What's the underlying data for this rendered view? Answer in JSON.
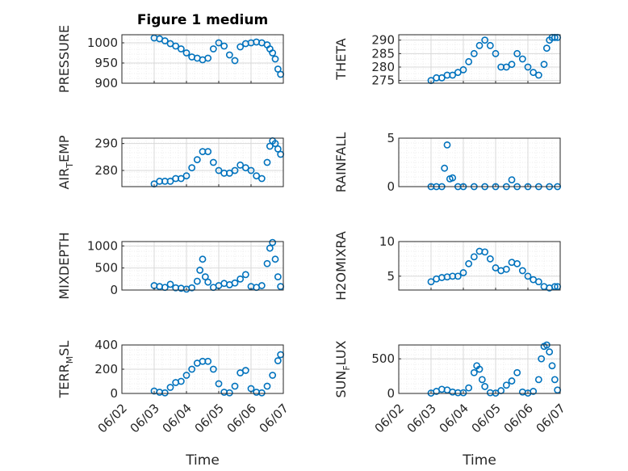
{
  "figure": {
    "title": "Figure 1 medium",
    "x_axis_label": "Time"
  },
  "colors": {
    "marker": "#0072BD",
    "axis": "#262626",
    "grid": "#d9d9d9",
    "minor_grid": "#ececec"
  },
  "chart_data": [
    {
      "type": "scatter",
      "position": "row1-left",
      "ylabel": "PRESSURE",
      "ylim": [
        900,
        1020
      ],
      "yticks": [
        900,
        950,
        1000
      ],
      "xlim": [
        "06/02",
        "06/07"
      ],
      "xticks": [],
      "grid": true,
      "x": [
        "06/03 00:00",
        "06/03 04:00",
        "06/03 08:00",
        "06/03 12:00",
        "06/03 16:00",
        "06/03 20:00",
        "06/04 00:00",
        "06/04 04:00",
        "06/04 08:00",
        "06/04 12:00",
        "06/04 16:00",
        "06/04 20:00",
        "06/05 00:00",
        "06/05 04:00",
        "06/05 08:00",
        "06/05 12:00",
        "06/05 16:00",
        "06/05 20:00",
        "06/06 00:00",
        "06/06 04:00",
        "06/06 08:00",
        "06/06 12:00",
        "06/06 14:00",
        "06/06 16:00",
        "06/06 18:00",
        "06/06 20:00",
        "06/06 22:00"
      ],
      "y": [
        1012,
        1010,
        1005,
        998,
        992,
        985,
        975,
        965,
        962,
        958,
        962,
        985,
        1000,
        992,
        970,
        956,
        990,
        998,
        1000,
        1002,
        1000,
        995,
        985,
        975,
        960,
        935,
        922
      ]
    },
    {
      "type": "scatter",
      "position": "row1-right",
      "ylabel": "THETA",
      "ylim": [
        274,
        292
      ],
      "yticks": [
        275,
        280,
        285,
        290
      ],
      "xlim": [
        "06/02",
        "06/07"
      ],
      "xticks": [],
      "grid": true,
      "x": [
        "06/03 00:00",
        "06/03 04:00",
        "06/03 08:00",
        "06/03 12:00",
        "06/03 16:00",
        "06/03 20:00",
        "06/04 00:00",
        "06/04 04:00",
        "06/04 08:00",
        "06/04 12:00",
        "06/04 16:00",
        "06/04 20:00",
        "06/05 00:00",
        "06/05 04:00",
        "06/05 08:00",
        "06/05 12:00",
        "06/05 16:00",
        "06/05 20:00",
        "06/06 00:00",
        "06/06 04:00",
        "06/06 08:00",
        "06/06 12:00",
        "06/06 14:00",
        "06/06 16:00",
        "06/06 18:00",
        "06/06 20:00",
        "06/06 22:00"
      ],
      "y": [
        275,
        276,
        276,
        277,
        277,
        278,
        279,
        282,
        285,
        288,
        290,
        288,
        285,
        280,
        280,
        281,
        285,
        283,
        280,
        278,
        277,
        281,
        287,
        290,
        291,
        291,
        291
      ]
    },
    {
      "type": "scatter",
      "position": "row2-left",
      "ylabel": "AIR_TEMP",
      "ylabel_main": "AIR",
      "ylabel_sub": "T",
      "ylabel_rest": "EMP",
      "ylim": [
        274,
        292
      ],
      "yticks": [
        280,
        290
      ],
      "xlim": [
        "06/02",
        "06/07"
      ],
      "xticks": [],
      "grid": true,
      "x": [
        "06/03 00:00",
        "06/03 04:00",
        "06/03 08:00",
        "06/03 12:00",
        "06/03 16:00",
        "06/03 20:00",
        "06/04 00:00",
        "06/04 04:00",
        "06/04 08:00",
        "06/04 12:00",
        "06/04 16:00",
        "06/04 20:00",
        "06/05 00:00",
        "06/05 04:00",
        "06/05 08:00",
        "06/05 12:00",
        "06/05 16:00",
        "06/05 20:00",
        "06/06 00:00",
        "06/06 04:00",
        "06/06 08:00",
        "06/06 12:00",
        "06/06 14:00",
        "06/06 16:00",
        "06/06 18:00",
        "06/06 20:00",
        "06/06 22:00"
      ],
      "y": [
        275,
        276,
        276,
        276,
        277,
        277,
        278,
        281,
        284,
        287,
        287,
        283,
        280,
        279,
        279,
        280,
        282,
        281,
        280,
        278,
        277,
        283,
        289,
        291,
        290,
        288,
        286
      ]
    },
    {
      "type": "scatter",
      "position": "row2-right",
      "ylabel": "RAINFALL",
      "ylim": [
        0,
        5
      ],
      "yticks": [
        0,
        5
      ],
      "xlim": [
        "06/02",
        "06/07"
      ],
      "xticks": [],
      "grid": true,
      "x": [
        "06/03 00:00",
        "06/03 04:00",
        "06/03 08:00",
        "06/03 10:00",
        "06/03 12:00",
        "06/03 14:00",
        "06/03 16:00",
        "06/03 20:00",
        "06/04 00:00",
        "06/04 08:00",
        "06/04 16:00",
        "06/05 00:00",
        "06/05 08:00",
        "06/05 12:00",
        "06/05 16:00",
        "06/06 00:00",
        "06/06 08:00",
        "06/06 16:00",
        "06/06 22:00"
      ],
      "y": [
        0,
        0,
        0,
        1.9,
        4.3,
        0.8,
        0.9,
        0,
        0,
        0,
        0,
        0,
        0,
        0.7,
        0,
        0,
        0,
        0,
        0
      ]
    },
    {
      "type": "scatter",
      "position": "row3-left",
      "ylabel": "MIXDEPTH",
      "ylim": [
        0,
        1100
      ],
      "yticks": [
        0,
        500,
        1000
      ],
      "xlim": [
        "06/02",
        "06/07"
      ],
      "xticks": [],
      "grid": true,
      "x": [
        "06/03 00:00",
        "06/03 04:00",
        "06/03 08:00",
        "06/03 12:00",
        "06/03 16:00",
        "06/03 20:00",
        "06/04 00:00",
        "06/04 04:00",
        "06/04 08:00",
        "06/04 10:00",
        "06/04 12:00",
        "06/04 14:00",
        "06/04 16:00",
        "06/04 20:00",
        "06/05 00:00",
        "06/05 04:00",
        "06/05 08:00",
        "06/05 12:00",
        "06/05 16:00",
        "06/05 20:00",
        "06/06 00:00",
        "06/06 04:00",
        "06/06 08:00",
        "06/06 12:00",
        "06/06 14:00",
        "06/06 16:00",
        "06/06 18:00",
        "06/06 20:00",
        "06/06 22:00"
      ],
      "y": [
        100,
        80,
        60,
        130,
        50,
        40,
        20,
        50,
        200,
        450,
        700,
        300,
        180,
        60,
        100,
        150,
        120,
        160,
        250,
        350,
        80,
        60,
        100,
        600,
        950,
        1080,
        700,
        300,
        80
      ]
    },
    {
      "type": "scatter",
      "position": "row3-right",
      "ylabel": "H2OMIXRA",
      "ylim": [
        3,
        10
      ],
      "yticks": [
        5,
        10
      ],
      "xlim": [
        "06/02",
        "06/07"
      ],
      "xticks": [],
      "grid": true,
      "x": [
        "06/03 00:00",
        "06/03 04:00",
        "06/03 08:00",
        "06/03 12:00",
        "06/03 16:00",
        "06/03 20:00",
        "06/04 00:00",
        "06/04 04:00",
        "06/04 08:00",
        "06/04 12:00",
        "06/04 16:00",
        "06/04 20:00",
        "06/05 00:00",
        "06/05 04:00",
        "06/05 08:00",
        "06/05 12:00",
        "06/05 16:00",
        "06/05 20:00",
        "06/06 00:00",
        "06/06 04:00",
        "06/06 08:00",
        "06/06 12:00",
        "06/06 16:00",
        "06/06 20:00",
        "06/06 22:00"
      ],
      "y": [
        4.2,
        4.6,
        4.8,
        4.9,
        5.0,
        5.0,
        5.5,
        6.8,
        7.8,
        8.6,
        8.5,
        7.5,
        6.2,
        5.8,
        6.0,
        7.0,
        6.8,
        5.8,
        5.0,
        4.5,
        4.2,
        3.5,
        3.3,
        3.5,
        3.5
      ]
    },
    {
      "type": "scatter",
      "position": "row4-left",
      "ylabel": "TERR_MSL",
      "ylabel_main": "TERR",
      "ylabel_sub": "M",
      "ylabel_rest": "SL",
      "ylim": [
        0,
        400
      ],
      "yticks": [
        0,
        200,
        400
      ],
      "xlim": [
        "06/02",
        "06/07"
      ],
      "xticks": [
        "06/02",
        "06/03",
        "06/04",
        "06/05",
        "06/06",
        "06/07"
      ],
      "grid": true,
      "x": [
        "06/03 00:00",
        "06/03 04:00",
        "06/03 08:00",
        "06/03 12:00",
        "06/03 16:00",
        "06/03 20:00",
        "06/04 00:00",
        "06/04 04:00",
        "06/04 08:00",
        "06/04 12:00",
        "06/04 16:00",
        "06/04 20:00",
        "06/05 00:00",
        "06/05 04:00",
        "06/05 08:00",
        "06/05 12:00",
        "06/05 16:00",
        "06/05 20:00",
        "06/06 00:00",
        "06/06 04:00",
        "06/06 08:00",
        "06/06 12:00",
        "06/06 16:00",
        "06/06 20:00",
        "06/06 22:00"
      ],
      "y": [
        20,
        10,
        5,
        50,
        90,
        100,
        150,
        200,
        250,
        265,
        265,
        200,
        80,
        10,
        5,
        60,
        170,
        190,
        40,
        10,
        5,
        60,
        150,
        270,
        320
      ]
    },
    {
      "type": "scatter",
      "position": "row4-right",
      "ylabel": "SUN_FLUX",
      "ylabel_main": "SUN",
      "ylabel_sub": "F",
      "ylabel_rest": "LUX",
      "ylim": [
        0,
        700
      ],
      "yticks": [
        0,
        500
      ],
      "xlim": [
        "06/02",
        "06/07"
      ],
      "xticks": [
        "06/02",
        "06/03",
        "06/04",
        "06/05",
        "06/06",
        "06/07"
      ],
      "grid": true,
      "x": [
        "06/03 00:00",
        "06/03 04:00",
        "06/03 08:00",
        "06/03 12:00",
        "06/03 16:00",
        "06/03 20:00",
        "06/04 00:00",
        "06/04 04:00",
        "06/04 08:00",
        "06/04 10:00",
        "06/04 12:00",
        "06/04 14:00",
        "06/04 16:00",
        "06/04 20:00",
        "06/05 00:00",
        "06/05 04:00",
        "06/05 08:00",
        "06/05 12:00",
        "06/05 16:00",
        "06/05 20:00",
        "06/06 00:00",
        "06/06 04:00",
        "06/06 08:00",
        "06/06 10:00",
        "06/06 12:00",
        "06/06 14:00",
        "06/06 16:00",
        "06/06 18:00",
        "06/06 20:00",
        "06/06 22:00"
      ],
      "y": [
        5,
        30,
        60,
        50,
        20,
        10,
        10,
        80,
        300,
        400,
        350,
        200,
        100,
        10,
        5,
        40,
        120,
        180,
        300,
        20,
        5,
        30,
        200,
        500,
        680,
        700,
        600,
        400,
        200,
        50
      ]
    }
  ]
}
